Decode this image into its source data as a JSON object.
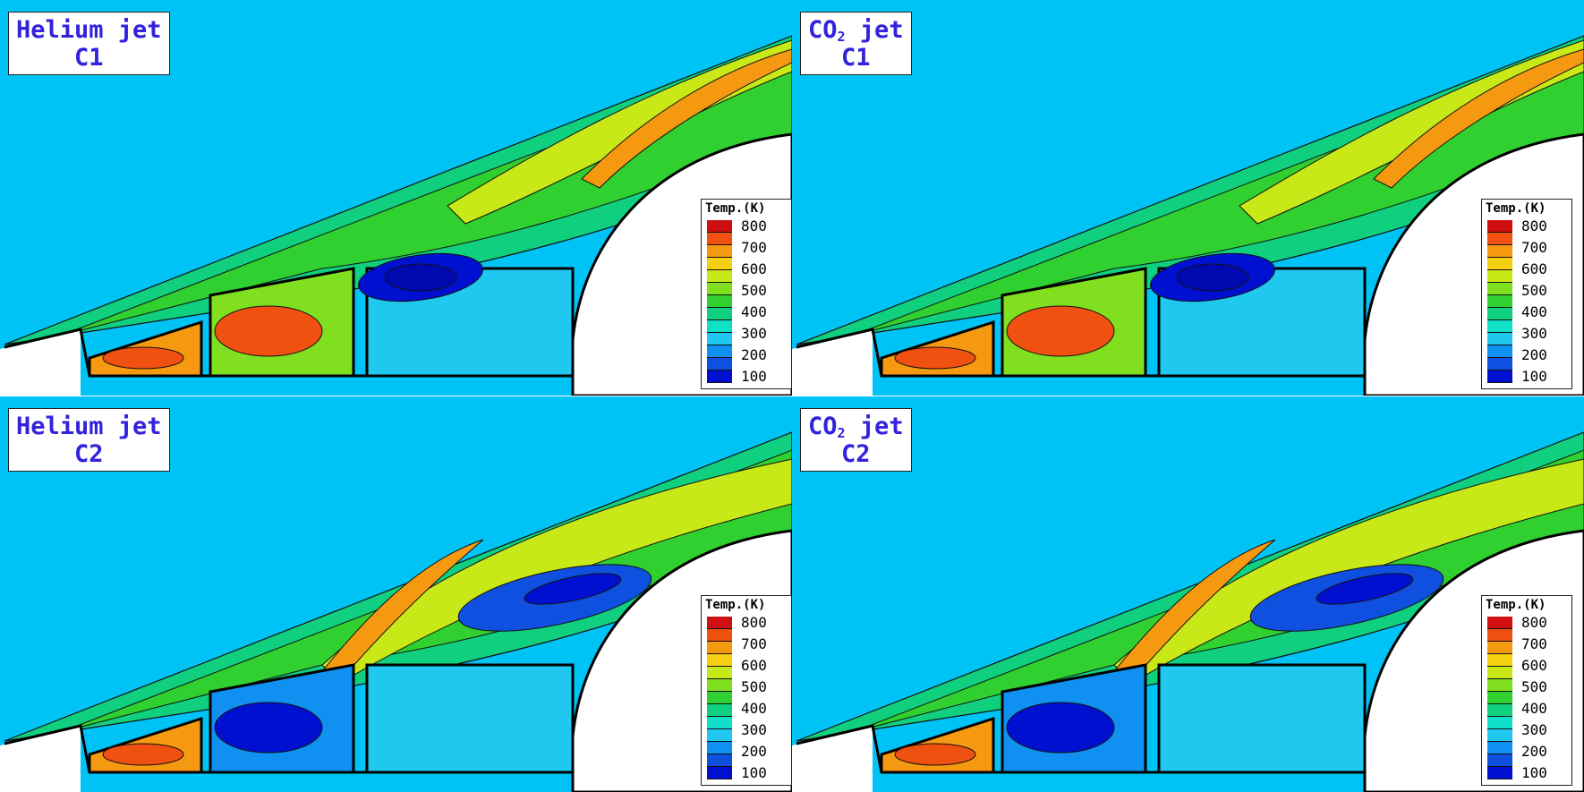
{
  "panels": [
    {
      "id": "tl",
      "title_line1": "Helium jet",
      "title_sub_prefix": "",
      "title_sub": "",
      "title_sub_suffix": "",
      "title_line2": "C1",
      "case": "C1"
    },
    {
      "id": "tr",
      "title_line1": "",
      "title_sub_prefix": "CO",
      "title_sub": "2",
      "title_sub_suffix": " jet",
      "title_line2": "C1",
      "case": "C1"
    },
    {
      "id": "bl",
      "title_line1": "Helium jet",
      "title_sub_prefix": "",
      "title_sub": "",
      "title_sub_suffix": "",
      "title_line2": "C2",
      "case": "C2"
    },
    {
      "id": "br",
      "title_line1": "",
      "title_sub_prefix": "CO",
      "title_sub": "2",
      "title_sub_suffix": " jet",
      "title_line2": "C2",
      "case": "C2"
    }
  ],
  "legend": {
    "title": "Temp.(K)",
    "ticks": [
      "800",
      "700",
      "600",
      "500",
      "400",
      "300",
      "200",
      "100"
    ],
    "colors": [
      "#d01010",
      "#f05010",
      "#f59a10",
      "#f5d010",
      "#c8e818",
      "#80e020",
      "#30d030",
      "#10d080",
      "#10e0c8",
      "#20c8f0",
      "#1090f0",
      "#1050e0",
      "#0010d0"
    ]
  },
  "colors": {
    "freestream": "#00c3f5",
    "body": "#ffffff",
    "cool_core": "#0a14d8",
    "hot": "#e83010"
  }
}
